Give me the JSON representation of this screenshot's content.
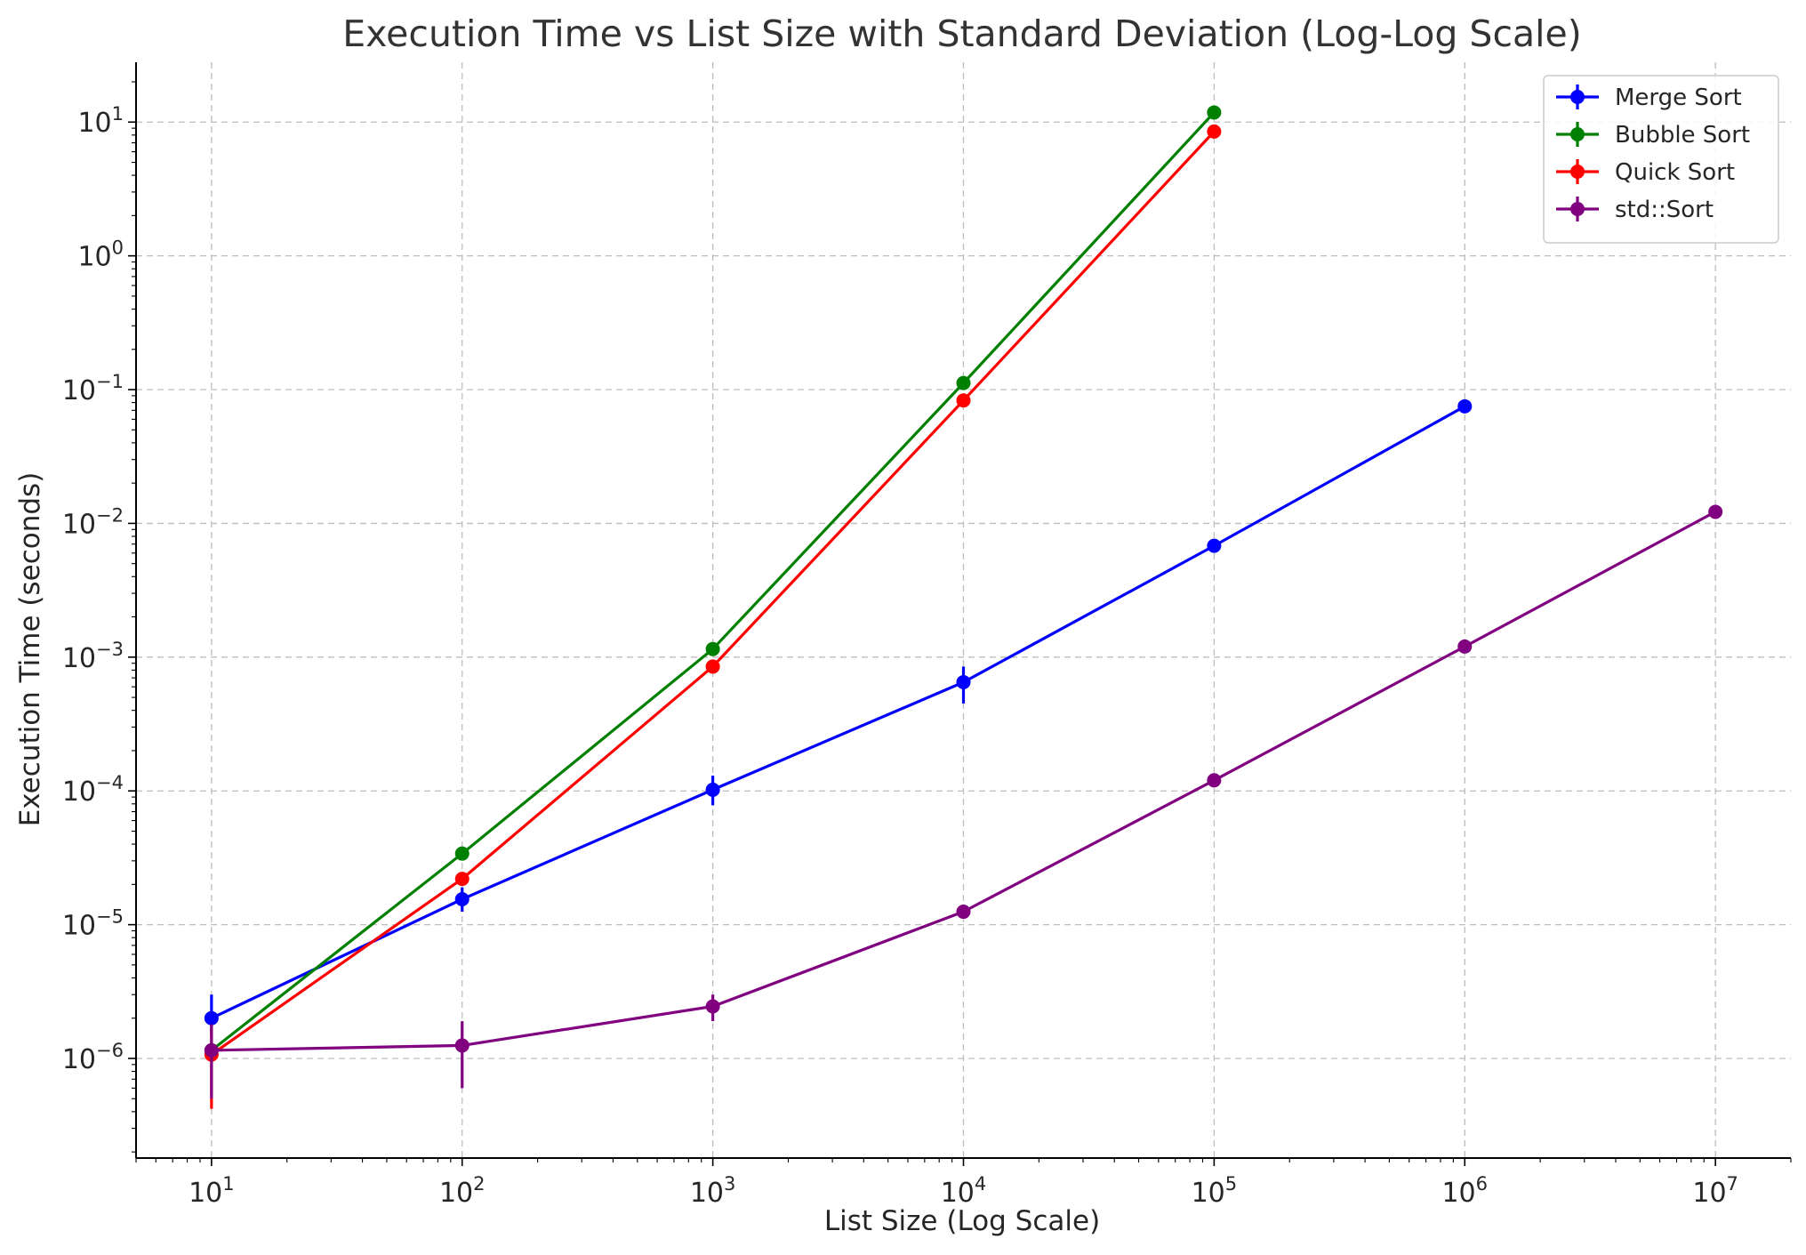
{
  "chart_data": {
    "type": "line",
    "title": "Execution Time vs List Size with Standard Deviation (Log-Log Scale)",
    "xlabel": "List Size (Log Scale)",
    "ylabel": "Execution Time (seconds)",
    "xscale": "log",
    "yscale": "log",
    "xlim": [
      5,
      20000000
    ],
    "ylim": [
      1.8e-07,
      28
    ],
    "x_ticks": [
      {
        "value": 10,
        "base": "10",
        "exp": "1"
      },
      {
        "value": 100,
        "base": "10",
        "exp": "2"
      },
      {
        "value": 1000,
        "base": "10",
        "exp": "3"
      },
      {
        "value": 10000,
        "base": "10",
        "exp": "4"
      },
      {
        "value": 100000,
        "base": "10",
        "exp": "5"
      },
      {
        "value": 1000000,
        "base": "10",
        "exp": "6"
      },
      {
        "value": 10000000,
        "base": "10",
        "exp": "7"
      }
    ],
    "y_ticks": [
      {
        "value": 1e-06,
        "base": "10",
        "exp": "−6"
      },
      {
        "value": 1e-05,
        "base": "10",
        "exp": "−5"
      },
      {
        "value": 0.0001,
        "base": "10",
        "exp": "−4"
      },
      {
        "value": 0.001,
        "base": "10",
        "exp": "−3"
      },
      {
        "value": 0.01,
        "base": "10",
        "exp": "−2"
      },
      {
        "value": 0.1,
        "base": "10",
        "exp": "−1"
      },
      {
        "value": 1,
        "base": "10",
        "exp": "0"
      },
      {
        "value": 10,
        "base": "10",
        "exp": "1"
      }
    ],
    "grid": true,
    "legend_position": "top-right",
    "series": [
      {
        "name": "Merge Sort",
        "color": "#0000ff",
        "x": [
          10,
          100,
          1000,
          10000,
          100000,
          1000000
        ],
        "y": [
          2e-06,
          1.55e-05,
          0.000102,
          0.00065,
          0.0068,
          0.075
        ],
        "yerr_low": [
          1.5e-06,
          1.25e-05,
          7.8e-05,
          0.00045,
          0.0066,
          0.073
        ],
        "yerr_high": [
          3e-06,
          1.9e-05,
          0.00013,
          0.00085,
          0.007,
          0.077
        ]
      },
      {
        "name": "Bubble Sort",
        "color": "#008000",
        "x": [
          10,
          100,
          1000,
          10000,
          100000
        ],
        "y": [
          1.15e-06,
          3.4e-05,
          0.00115,
          0.112,
          11.8
        ],
        "yerr_low": [
          1.1e-06,
          3.3e-05,
          0.00112,
          0.11,
          11.5
        ],
        "yerr_high": [
          1.2e-06,
          3.5e-05,
          0.00118,
          0.114,
          12.1
        ]
      },
      {
        "name": "Quick Sort",
        "color": "#ff0000",
        "x": [
          10,
          100,
          1000,
          10000,
          100000
        ],
        "y": [
          1.07e-06,
          2.2e-05,
          0.00085,
          0.083,
          8.5
        ],
        "yerr_low": [
          4.2e-07,
          2e-05,
          0.00082,
          0.081,
          8.3
        ],
        "yerr_high": [
          1.7e-06,
          2.4e-05,
          0.00088,
          0.085,
          8.7
        ]
      },
      {
        "name": "std::Sort",
        "color": "#800080",
        "x": [
          10,
          100,
          1000,
          10000,
          100000,
          1000000,
          10000000
        ],
        "y": [
          1.15e-06,
          1.25e-06,
          2.45e-06,
          1.25e-05,
          0.00012,
          0.0012,
          0.0122
        ],
        "yerr_low": [
          5e-07,
          6e-07,
          1.9e-06,
          1.2e-05,
          0.000117,
          0.00118,
          0.012
        ],
        "yerr_high": [
          1.8e-06,
          1.9e-06,
          3e-06,
          1.3e-05,
          0.000123,
          0.00122,
          0.0124
        ]
      }
    ]
  }
}
